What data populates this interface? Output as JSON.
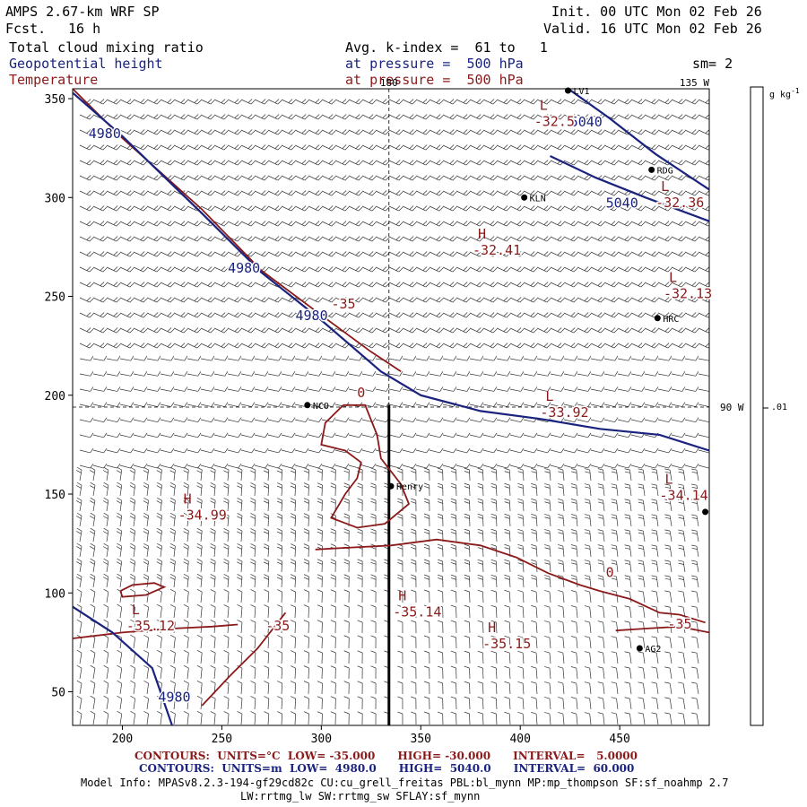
{
  "header": {
    "title": "AMPS 2.67-km WRF SP",
    "fcst_label": "Fcst.",
    "fcst_value": "16 h",
    "init": "Init. 00 UTC Mon 02 Feb 26",
    "valid": "Valid. 16 UTC Mon 02 Feb 26",
    "field1": "Total cloud mixing ratio",
    "field2": "Geopotential height",
    "field3": "Temperature",
    "avg": "Avg. k-index =  61 to   1",
    "press1": "at pressure =  500 hPa",
    "press2": "at pressure =  500 hPa",
    "sm": "sm= 2"
  },
  "colors": {
    "geopotential": "#1a237e",
    "temperature": "#8b1a1a",
    "barbs": "#000000"
  },
  "colorbar": {
    "units": "g kg",
    "units_exp": "-1",
    "tick_value": ".01"
  },
  "chart_data": {
    "type": "contour",
    "xlim": [
      175,
      495
    ],
    "ylim": [
      33,
      355
    ],
    "x_ticks": [
      200,
      250,
      300,
      350,
      400,
      450
    ],
    "y_ticks": [
      50,
      100,
      150,
      200,
      250,
      300,
      350
    ],
    "grid": false,
    "meridians": [
      {
        "label": "180",
        "x": 334
      },
      {
        "label": "135 W",
        "x": 495
      },
      {
        "label": "90 W",
        "y": 194
      }
    ],
    "stations": [
      {
        "name": "LV1",
        "x": 424,
        "y": 356
      },
      {
        "name": "RDG",
        "x": 466,
        "y": 314
      },
      {
        "name": "KLN",
        "x": 402,
        "y": 300
      },
      {
        "name": "HRC",
        "x": 469,
        "y": 239
      },
      {
        "name": "NCO",
        "x": 293,
        "y": 195
      },
      {
        "name": "Henry",
        "x": 335,
        "y": 154
      },
      {
        "name": "AG2",
        "x": 460,
        "y": 72
      },
      {
        "name": "",
        "x": 493,
        "y": 141
      }
    ],
    "height_contours": [
      {
        "label": "4980",
        "points": [
          [
            175,
            353
          ],
          [
            200,
            331
          ],
          [
            240,
            292
          ],
          [
            270,
            262
          ],
          [
            300,
            238
          ],
          [
            330,
            212
          ],
          [
            350,
            200
          ],
          [
            380,
            192
          ],
          [
            410,
            188
          ],
          [
            440,
            183
          ],
          [
            470,
            180
          ],
          [
            495,
            172
          ]
        ]
      },
      {
        "label": "5040",
        "points": [
          [
            420,
            358
          ],
          [
            445,
            340
          ],
          [
            468,
            322
          ],
          [
            495,
            304
          ]
        ]
      },
      {
        "label": "5040",
        "points": [
          [
            415,
            321
          ],
          [
            438,
            310
          ],
          [
            463,
            300
          ],
          [
            495,
            288
          ]
        ]
      },
      {
        "label": "4980",
        "points": [
          [
            175,
            93
          ],
          [
            195,
            80
          ],
          [
            215,
            62
          ],
          [
            225,
            33
          ]
        ]
      }
    ],
    "height_labels": [
      {
        "text": "4980",
        "x": 183,
        "y": 330
      },
      {
        "text": "4980",
        "x": 253,
        "y": 262
      },
      {
        "text": "4980",
        "x": 287,
        "y": 238
      },
      {
        "text": "5040",
        "x": 425,
        "y": 336
      },
      {
        "text": "5040",
        "x": 443,
        "y": 295
      },
      {
        "text": "4980",
        "x": 218,
        "y": 45
      }
    ],
    "temperature_contours": [
      {
        "label": "-35",
        "points": [
          [
            175,
            355
          ],
          [
            200,
            330
          ],
          [
            240,
            294
          ],
          [
            270,
            263
          ],
          [
            302,
            239
          ],
          [
            325,
            222
          ],
          [
            340,
            212
          ]
        ]
      },
      {
        "label": "-35",
        "points": [
          [
            175,
            77
          ],
          [
            200,
            80
          ],
          [
            225,
            82
          ],
          [
            245,
            83
          ],
          [
            258,
            84
          ]
        ]
      },
      {
        "label": "-35",
        "points": [
          [
            282,
            90
          ],
          [
            268,
            72
          ],
          [
            254,
            58
          ],
          [
            240,
            43
          ]
        ]
      },
      {
        "label": "-35",
        "points": [
          [
            297,
            122
          ],
          [
            315,
            123
          ],
          [
            335,
            124
          ],
          [
            358,
            127
          ],
          [
            380,
            124
          ],
          [
            398,
            118
          ],
          [
            414,
            110
          ],
          [
            430,
            104
          ],
          [
            440,
            101
          ],
          [
            455,
            97
          ],
          [
            470,
            90
          ],
          [
            480,
            89
          ],
          [
            493,
            85
          ]
        ]
      },
      {
        "label": "-35",
        "points": [
          [
            448,
            81
          ],
          [
            463,
            82
          ],
          [
            480,
            83
          ],
          [
            495,
            80
          ]
        ]
      },
      {
        "label": "",
        "points": [
          [
            311,
            195
          ],
          [
            302,
            186
          ],
          [
            300,
            175
          ],
          [
            312,
            172
          ],
          [
            320,
            166
          ],
          [
            318,
            158
          ],
          [
            312,
            150
          ],
          [
            305,
            138
          ],
          [
            318,
            133
          ],
          [
            332,
            135
          ],
          [
            344,
            145
          ],
          [
            340,
            155
          ],
          [
            330,
            168
          ],
          [
            328,
            180
          ],
          [
            322,
            195
          ],
          [
            311,
            195
          ]
        ]
      },
      {
        "label": "",
        "points": [
          [
            199,
            101
          ],
          [
            205,
            104
          ],
          [
            216,
            105
          ],
          [
            221,
            103
          ],
          [
            212,
            99
          ],
          [
            200,
            98
          ],
          [
            199,
            101
          ]
        ]
      }
    ],
    "temperature_labels": [
      {
        "text": "-35",
        "x": 305,
        "y": 244
      },
      {
        "text": "-35",
        "x": 272,
        "y": 81
      },
      {
        "text": "-35",
        "x": 474,
        "y": 82
      },
      {
        "text": "0",
        "x": 318,
        "y": 199
      },
      {
        "text": "0",
        "x": 443,
        "y": 108
      }
    ],
    "extrema": [
      {
        "kind": "L",
        "value": "-32.5",
        "x": 407,
        "y": 337
      },
      {
        "kind": "L",
        "value": "-32.36",
        "x": 468,
        "y": 296
      },
      {
        "kind": "H",
        "value": "-32.41",
        "x": 376,
        "y": 272
      },
      {
        "kind": "L",
        "value": "-32.13",
        "x": 472,
        "y": 250
      },
      {
        "kind": "L",
        "value": "-33.92",
        "x": 410,
        "y": 190
      },
      {
        "kind": "L",
        "value": "-34.14",
        "x": 470,
        "y": 148
      },
      {
        "kind": "H",
        "value": "-34.99",
        "x": 228,
        "y": 138
      },
      {
        "kind": "L",
        "value": "-35.12",
        "x": 202,
        "y": 82
      },
      {
        "kind": "H",
        "value": "-35.14",
        "x": 336,
        "y": 89
      },
      {
        "kind": "H",
        "value": "-35.15",
        "x": 381,
        "y": 73
      }
    ]
  },
  "footer": {
    "temp_contours": "CONTOURS:  UNITS=°C  LOW= -35.000      HIGH= -30.000      INTERVAL=   5.0000",
    "height_contours": "CONTOURS:  UNITS=m  LOW=  4980.0      HIGH=  5040.0      INTERVAL=  60.000",
    "model_info1": "Model Info: MPASv8.2.3-194-gf29cd82c CU:cu_grell_freitas PBL:bl_mynn MP:mp_thompson SF:sf_noahmp 2.7",
    "model_info2": "LW:rrtmg_lw SW:rrtmg_sw SFLAY:sf_mynn"
  }
}
